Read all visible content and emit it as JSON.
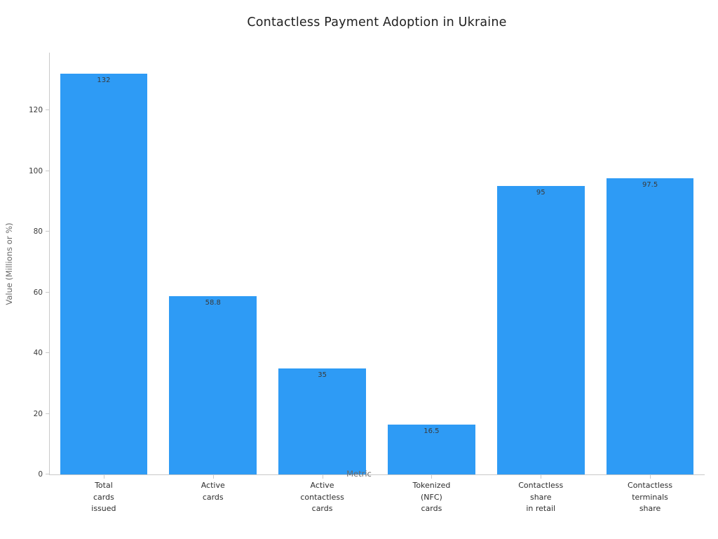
{
  "chart_data": {
    "type": "bar",
    "title": "Contactless Payment Adoption in Ukraine",
    "xlabel": "Metric",
    "ylabel": "Value (Millions or %)",
    "categories": [
      "Total\ncards\nissued",
      "Active\ncards",
      "Active\ncontactless\ncards",
      "Tokenized\n(NFC)\ncards",
      "Contactless\nshare\nin retail",
      "Contactless\nterminals\nshare"
    ],
    "values": [
      132,
      58.8,
      35,
      16.5,
      95,
      97.5
    ],
    "value_labels": [
      "132",
      "58.8",
      "35",
      "16.5",
      "95",
      "97.5"
    ],
    "ylim": [
      0,
      139
    ],
    "yticks": [
      0,
      20,
      40,
      60,
      80,
      100,
      120
    ],
    "grid": false,
    "legend": "none",
    "bar_color": "#2E9BF5",
    "value_label_color": "#3a3a3a"
  }
}
